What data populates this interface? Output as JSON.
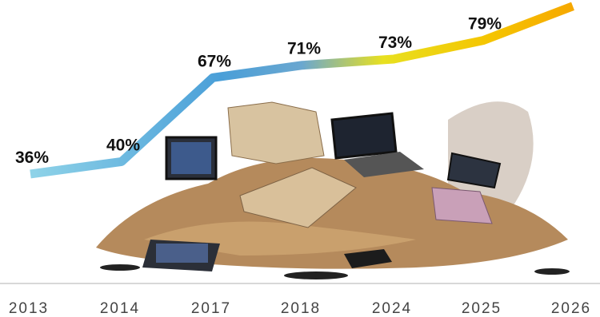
{
  "chart_data": {
    "type": "line",
    "categories": [
      "2013",
      "2014",
      "2017",
      "2018",
      "2024",
      "2025",
      "2026"
    ],
    "values": [
      36,
      40,
      67,
      71,
      73,
      79,
      90
    ],
    "value_labels": [
      "36%",
      "40%",
      "67%",
      "71%",
      "73%",
      "79%",
      null
    ],
    "ylim": [
      -10,
      92
    ]
  }
}
